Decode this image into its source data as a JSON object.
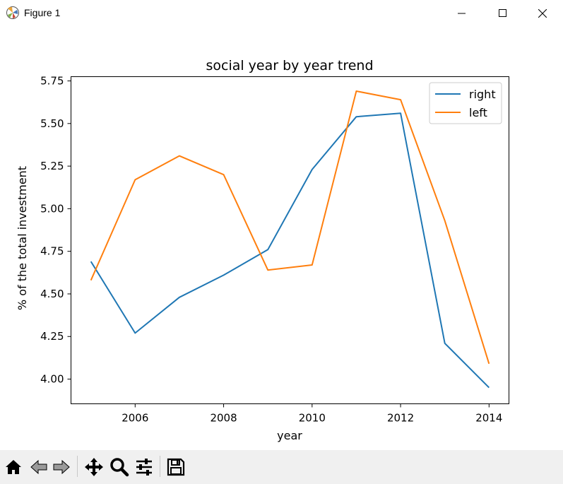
{
  "window": {
    "title": "Figure 1",
    "icons": [
      "matplotlib-icon",
      "minimize-icon",
      "maximize-icon",
      "close-icon"
    ]
  },
  "colors": {
    "right": "#1f77b4",
    "left": "#ff7f0e",
    "toolbar_bg": "#f0f0f0"
  },
  "toolbar": {
    "icons": [
      "home-icon",
      "back-icon",
      "forward-icon",
      "pan-icon",
      "zoom-icon",
      "configure-subplots-icon",
      "save-icon"
    ]
  },
  "chart_data": {
    "type": "line",
    "title": "social year by year trend",
    "xlabel": "year",
    "ylabel": "% of the total investment",
    "x": [
      2005,
      2006,
      2007,
      2008,
      2009,
      2010,
      2011,
      2012,
      2013,
      2014
    ],
    "xticks": [
      2006,
      2008,
      2010,
      2012,
      2014
    ],
    "xtick_labels": [
      "2006",
      "2008",
      "2010",
      "2012",
      "2014"
    ],
    "yticks": [
      4.0,
      4.25,
      4.5,
      4.75,
      5.0,
      5.25,
      5.5,
      5.75
    ],
    "ytick_labels": [
      "4.00",
      "4.25",
      "4.50",
      "4.75",
      "5.00",
      "5.25",
      "5.50",
      "5.75"
    ],
    "xlim": [
      2004.55,
      2014.45
    ],
    "ylim": [
      3.855,
      5.775
    ],
    "grid": false,
    "legend_position": "upper right",
    "series": [
      {
        "name": "right",
        "values": [
          4.69,
          4.27,
          4.48,
          4.61,
          4.76,
          5.23,
          5.54,
          5.56,
          4.21,
          3.95
        ]
      },
      {
        "name": "left",
        "values": [
          4.58,
          5.17,
          5.31,
          5.2,
          4.64,
          4.67,
          5.69,
          5.64,
          4.93,
          4.09
        ]
      }
    ]
  }
}
